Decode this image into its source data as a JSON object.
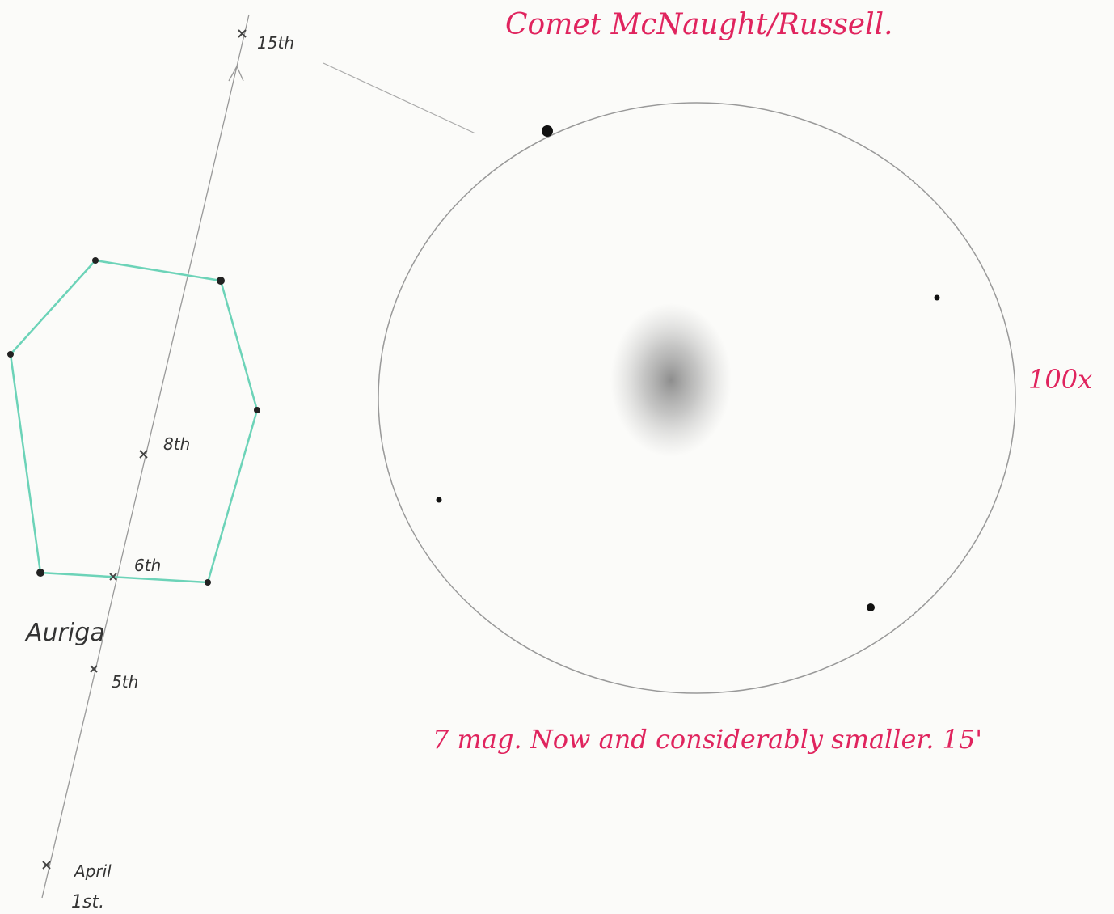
{
  "title": "Comet McNaught/Russell.",
  "magnification": "100x",
  "note": "7 mag. Now and considerably smaller. 15'",
  "constellation": "Auriga",
  "track": {
    "labels": [
      "15th",
      "8th",
      "6th",
      "5th",
      "April",
      "1st."
    ]
  }
}
